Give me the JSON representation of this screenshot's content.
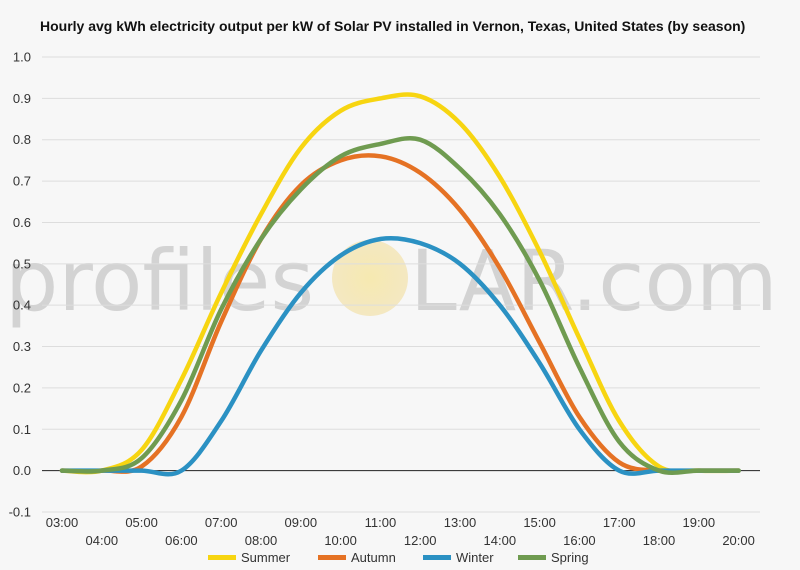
{
  "chart_data": {
    "type": "line",
    "title": "Hourly avg kWh electricity output per kW of Solar PV installed in Vernon, Texas, United States (by season)",
    "xlabel": "",
    "ylabel": "",
    "ylim": [
      -0.1,
      1.0
    ],
    "yticks": [
      "-0.1",
      "0.0",
      "0.1",
      "0.2",
      "0.3",
      "0.4",
      "0.5",
      "0.6",
      "0.7",
      "0.8",
      "0.9",
      "1.0"
    ],
    "x": [
      3,
      4,
      5,
      6,
      7,
      8,
      9,
      10,
      11,
      12,
      13,
      14,
      15,
      16,
      17,
      18,
      19,
      20
    ],
    "xticks": [
      "03:00",
      "04:00",
      "05:00",
      "06:00",
      "07:00",
      "08:00",
      "09:00",
      "10:00",
      "11:00",
      "12:00",
      "13:00",
      "14:00",
      "15:00",
      "16:00",
      "17:00",
      "18:00",
      "19:00",
      "20:00"
    ],
    "grid": true,
    "legend_position": "bottom",
    "series": [
      {
        "name": "Summer",
        "color": "#f7d511",
        "values": [
          0.0,
          0.0,
          0.05,
          0.22,
          0.43,
          0.62,
          0.78,
          0.87,
          0.9,
          0.905,
          0.84,
          0.71,
          0.53,
          0.32,
          0.12,
          0.01,
          0.0,
          0.0
        ]
      },
      {
        "name": "Autumn",
        "color": "#e57224",
        "values": [
          0.0,
          0.0,
          0.01,
          0.13,
          0.36,
          0.56,
          0.69,
          0.75,
          0.76,
          0.72,
          0.63,
          0.49,
          0.31,
          0.13,
          0.02,
          0.0,
          0.0,
          0.0
        ]
      },
      {
        "name": "Winter",
        "color": "#2b91c3",
        "values": [
          0.0,
          0.0,
          0.0,
          0.0,
          0.12,
          0.29,
          0.43,
          0.52,
          0.56,
          0.55,
          0.5,
          0.4,
          0.26,
          0.1,
          0.0,
          0.0,
          0.0,
          0.0
        ]
      },
      {
        "name": "Spring",
        "color": "#6f9b50",
        "values": [
          0.0,
          0.0,
          0.03,
          0.17,
          0.39,
          0.56,
          0.68,
          0.76,
          0.79,
          0.8,
          0.73,
          0.62,
          0.46,
          0.25,
          0.07,
          0.0,
          0.0,
          0.0
        ]
      }
    ]
  },
  "watermark": {
    "left": "profiles",
    "right": "LAR.com"
  }
}
